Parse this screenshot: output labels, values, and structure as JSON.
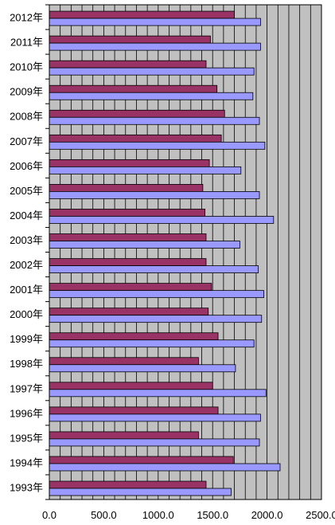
{
  "chart_data": {
    "type": "bar",
    "orientation": "horizontal",
    "categories": [
      "2012年",
      "2011年",
      "2010年",
      "2009年",
      "2008年",
      "2007年",
      "2006年",
      "2005年",
      "2004年",
      "2003年",
      "2002年",
      "2001年",
      "2000年",
      "1999年",
      "1998年",
      "1997年",
      "1996年",
      "1995年",
      "1994年",
      "1993年"
    ],
    "series": [
      {
        "values": [
          1700,
          1480,
          1440,
          1540,
          1610,
          1580,
          1470,
          1410,
          1430,
          1440,
          1440,
          1490,
          1460,
          1550,
          1370,
          1500,
          1550,
          1370,
          1690,
          1440
        ]
      },
      {
        "values": [
          1940,
          1940,
          1880,
          1870,
          1930,
          1980,
          1760,
          1930,
          2060,
          1750,
          1920,
          1970,
          1950,
          1880,
          1710,
          1990,
          1940,
          1930,
          2120,
          1670
        ]
      }
    ],
    "colors": {
      "series1": "#993366",
      "series2": "#9999ff",
      "plot_bg": "#c0c0c0",
      "grid": "#000000"
    },
    "xlim": [
      0,
      2500
    ],
    "xticks": [
      "0.0",
      "500.0",
      "1000.0",
      "1500.0",
      "2000.0",
      "2500.0"
    ],
    "grid": true,
    "title": "",
    "xlabel": "",
    "ylabel": ""
  }
}
